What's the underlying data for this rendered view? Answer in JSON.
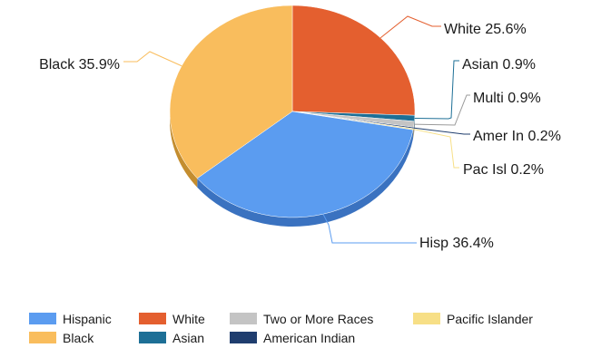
{
  "chart_data": {
    "type": "pie",
    "title": "",
    "slices": [
      {
        "name": "White",
        "short": "White",
        "value": 25.6,
        "label": "White 25.6%",
        "color": "#e45f2f",
        "dark": "#a9441f"
      },
      {
        "name": "Asian",
        "short": "Asian",
        "value": 0.9,
        "label": "Asian 0.9%",
        "color": "#1d6f96",
        "dark": "#134e6a"
      },
      {
        "name": "Two or More Races",
        "short": "Multi",
        "value": 0.9,
        "label": "Multi 0.9%",
        "color": "#c4c4c4",
        "dark": "#8e8e8e"
      },
      {
        "name": "American Indian",
        "short": "Amer In",
        "value": 0.2,
        "label": "Amer In 0.2%",
        "color": "#1f3d6e",
        "dark": "#142949"
      },
      {
        "name": "Pacific Islander",
        "short": "Pac Isl",
        "value": 0.2,
        "label": "Pac Isl 0.2%",
        "color": "#f7df86",
        "dark": "#c9b05a"
      },
      {
        "name": "Hispanic",
        "short": "Hisp",
        "value": 36.4,
        "label": "Hisp 36.4%",
        "color": "#5b9cf0",
        "dark": "#3a72c0"
      },
      {
        "name": "Black",
        "short": "Black",
        "value": 35.9,
        "label": "Black 35.9%",
        "color": "#f9bd5d",
        "dark": "#c48d2f"
      }
    ],
    "legend": {
      "placement": "bottom",
      "rows": [
        [
          "Hispanic",
          "White",
          "Two or More Races",
          "Pacific Islander"
        ],
        [
          "Black",
          "Asian",
          "American Indian"
        ]
      ]
    },
    "units": "%"
  }
}
